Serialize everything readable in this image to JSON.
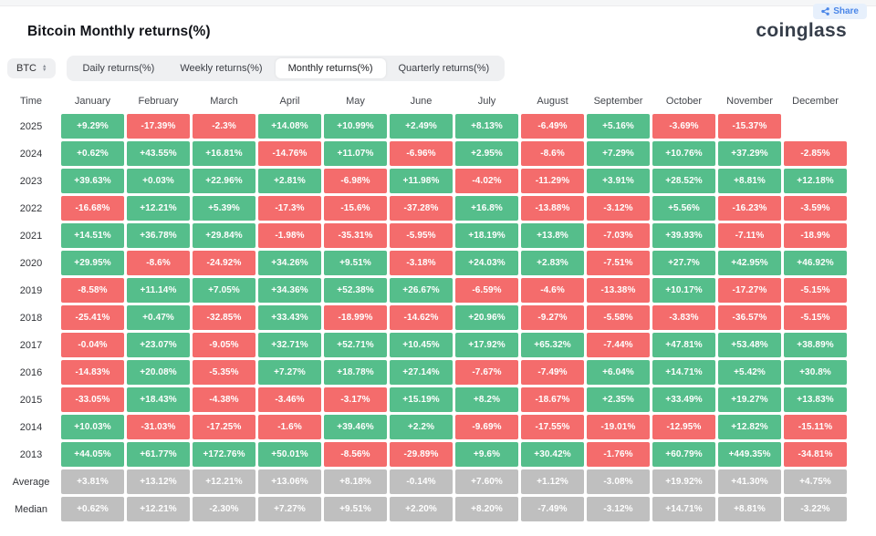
{
  "header": {
    "title": "Bitcoin Monthly returns(%)",
    "share_label": "Share",
    "logo": "coinglass"
  },
  "controls": {
    "symbol": "BTC",
    "tabs": [
      {
        "name": "tab-daily-returns",
        "label": "Daily returns(%)",
        "active": false
      },
      {
        "name": "tab-weekly-returns",
        "label": "Weekly returns(%)",
        "active": false
      },
      {
        "name": "tab-monthly-returns",
        "label": "Monthly returns(%)",
        "active": true
      },
      {
        "name": "tab-quarterly-returns",
        "label": "Quarterly returns(%)",
        "active": false
      }
    ]
  },
  "colors": {
    "positive": "#55be8b",
    "negative": "#f46c6c",
    "summary": "#bfbfbf"
  },
  "table": {
    "columns": [
      "Time",
      "January",
      "February",
      "March",
      "April",
      "May",
      "June",
      "July",
      "August",
      "September",
      "October",
      "November",
      "December"
    ],
    "rows": [
      {
        "label": "2025",
        "type": "year",
        "values": [
          "+9.29%",
          "-17.39%",
          "-2.3%",
          "+14.08%",
          "+10.99%",
          "+2.49%",
          "+8.13%",
          "-6.49%",
          "+5.16%",
          "-3.69%",
          "-15.37%",
          null
        ]
      },
      {
        "label": "2024",
        "type": "year",
        "values": [
          "+0.62%",
          "+43.55%",
          "+16.81%",
          "-14.76%",
          "+11.07%",
          "-6.96%",
          "+2.95%",
          "-8.6%",
          "+7.29%",
          "+10.76%",
          "+37.29%",
          "-2.85%"
        ]
      },
      {
        "label": "2023",
        "type": "year",
        "values": [
          "+39.63%",
          "+0.03%",
          "+22.96%",
          "+2.81%",
          "-6.98%",
          "+11.98%",
          "-4.02%",
          "-11.29%",
          "+3.91%",
          "+28.52%",
          "+8.81%",
          "+12.18%"
        ]
      },
      {
        "label": "2022",
        "type": "year",
        "values": [
          "-16.68%",
          "+12.21%",
          "+5.39%",
          "-17.3%",
          "-15.6%",
          "-37.28%",
          "+16.8%",
          "-13.88%",
          "-3.12%",
          "+5.56%",
          "-16.23%",
          "-3.59%"
        ]
      },
      {
        "label": "2021",
        "type": "year",
        "values": [
          "+14.51%",
          "+36.78%",
          "+29.84%",
          "-1.98%",
          "-35.31%",
          "-5.95%",
          "+18.19%",
          "+13.8%",
          "-7.03%",
          "+39.93%",
          "-7.11%",
          "-18.9%"
        ]
      },
      {
        "label": "2020",
        "type": "year",
        "values": [
          "+29.95%",
          "-8.6%",
          "-24.92%",
          "+34.26%",
          "+9.51%",
          "-3.18%",
          "+24.03%",
          "+2.83%",
          "-7.51%",
          "+27.7%",
          "+42.95%",
          "+46.92%"
        ]
      },
      {
        "label": "2019",
        "type": "year",
        "values": [
          "-8.58%",
          "+11.14%",
          "+7.05%",
          "+34.36%",
          "+52.38%",
          "+26.67%",
          "-6.59%",
          "-4.6%",
          "-13.38%",
          "+10.17%",
          "-17.27%",
          "-5.15%"
        ]
      },
      {
        "label": "2018",
        "type": "year",
        "values": [
          "-25.41%",
          "+0.47%",
          "-32.85%",
          "+33.43%",
          "-18.99%",
          "-14.62%",
          "+20.96%",
          "-9.27%",
          "-5.58%",
          "-3.83%",
          "-36.57%",
          "-5.15%"
        ]
      },
      {
        "label": "2017",
        "type": "year",
        "values": [
          "-0.04%",
          "+23.07%",
          "-9.05%",
          "+32.71%",
          "+52.71%",
          "+10.45%",
          "+17.92%",
          "+65.32%",
          "-7.44%",
          "+47.81%",
          "+53.48%",
          "+38.89%"
        ]
      },
      {
        "label": "2016",
        "type": "year",
        "values": [
          "-14.83%",
          "+20.08%",
          "-5.35%",
          "+7.27%",
          "+18.78%",
          "+27.14%",
          "-7.67%",
          "-7.49%",
          "+6.04%",
          "+14.71%",
          "+5.42%",
          "+30.8%"
        ]
      },
      {
        "label": "2015",
        "type": "year",
        "values": [
          "-33.05%",
          "+18.43%",
          "-4.38%",
          "-3.46%",
          "-3.17%",
          "+15.19%",
          "+8.2%",
          "-18.67%",
          "+2.35%",
          "+33.49%",
          "+19.27%",
          "+13.83%"
        ]
      },
      {
        "label": "2014",
        "type": "year",
        "values": [
          "+10.03%",
          "-31.03%",
          "-17.25%",
          "-1.6%",
          "+39.46%",
          "+2.2%",
          "-9.69%",
          "-17.55%",
          "-19.01%",
          "-12.95%",
          "+12.82%",
          "-15.11%"
        ]
      },
      {
        "label": "2013",
        "type": "year",
        "values": [
          "+44.05%",
          "+61.77%",
          "+172.76%",
          "+50.01%",
          "-8.56%",
          "-29.89%",
          "+9.6%",
          "+30.42%",
          "-1.76%",
          "+60.79%",
          "+449.35%",
          "-34.81%"
        ]
      },
      {
        "label": "Average",
        "type": "summary",
        "values": [
          "+3.81%",
          "+13.12%",
          "+12.21%",
          "+13.06%",
          "+8.18%",
          "-0.14%",
          "+7.60%",
          "+1.12%",
          "-3.08%",
          "+19.92%",
          "+41.30%",
          "+4.75%"
        ]
      },
      {
        "label": "Median",
        "type": "summary",
        "values": [
          "+0.62%",
          "+12.21%",
          "-2.30%",
          "+7.27%",
          "+9.51%",
          "+2.20%",
          "+8.20%",
          "-7.49%",
          "-3.12%",
          "+14.71%",
          "+8.81%",
          "-3.22%"
        ]
      }
    ]
  }
}
